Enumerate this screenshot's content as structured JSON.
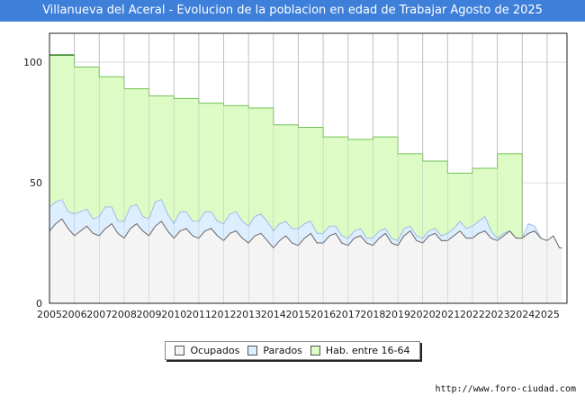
{
  "title": "Villanueva del Aceral - Evolucion de la poblacion en edad de Trabajar Agosto de 2025",
  "source": "http://www.foro-ciudad.com",
  "colors": {
    "hab": "#ddfbc5",
    "hab_line": "#72c254",
    "parados": "#ddeeff",
    "parados_line": "#9bbfe6",
    "ocupados": "#f4f4f4",
    "ocupados_line": "#666666"
  },
  "chart_data": {
    "type": "area",
    "xlim": [
      2005,
      2025.8
    ],
    "ylim": [
      0,
      112
    ],
    "x_ticks": [
      "2005",
      "2006",
      "2007",
      "2008",
      "2009",
      "2010",
      "2011",
      "2012",
      "2013",
      "2014",
      "2015",
      "2016",
      "2017",
      "2018",
      "2019",
      "2020",
      "2021",
      "2022",
      "2023",
      "2024",
      "2025"
    ],
    "y_ticks": [
      "0",
      "50",
      "100"
    ],
    "legend": [
      "Ocupados",
      "Parados",
      "Hab. entre 16-64"
    ],
    "hab_steps": [
      {
        "from": 2005,
        "to": 2006,
        "value": 103
      },
      {
        "from": 2006,
        "to": 2007,
        "value": 98
      },
      {
        "from": 2007,
        "to": 2008,
        "value": 94
      },
      {
        "from": 2008,
        "to": 2009,
        "value": 89
      },
      {
        "from": 2009,
        "to": 2010,
        "value": 86
      },
      {
        "from": 2010,
        "to": 2011,
        "value": 85
      },
      {
        "from": 2011,
        "to": 2012,
        "value": 83
      },
      {
        "from": 2012,
        "to": 2013,
        "value": 82
      },
      {
        "from": 2013,
        "to": 2014,
        "value": 81
      },
      {
        "from": 2014,
        "to": 2015,
        "value": 74
      },
      {
        "from": 2015,
        "to": 2016,
        "value": 73
      },
      {
        "from": 2016,
        "to": 2017,
        "value": 69
      },
      {
        "from": 2017,
        "to": 2018,
        "value": 68
      },
      {
        "from": 2018,
        "to": 2019,
        "value": 69
      },
      {
        "from": 2019,
        "to": 2020,
        "value": 62
      },
      {
        "from": 2020,
        "to": 2021,
        "value": 59
      },
      {
        "from": 2021,
        "to": 2022,
        "value": 54
      },
      {
        "from": 2022,
        "to": 2023,
        "value": 56
      },
      {
        "from": 2023,
        "to": 2024,
        "value": 62
      }
    ],
    "ocupados": {
      "x": [
        2005,
        2005.25,
        2005.5,
        2005.75,
        2006,
        2006.25,
        2006.5,
        2006.75,
        2007,
        2007.25,
        2007.5,
        2007.75,
        2008,
        2008.25,
        2008.5,
        2008.75,
        2009,
        2009.25,
        2009.5,
        2009.75,
        2010,
        2010.25,
        2010.5,
        2010.75,
        2011,
        2011.25,
        2011.5,
        2011.75,
        2012,
        2012.25,
        2012.5,
        2012.75,
        2013,
        2013.25,
        2013.5,
        2013.75,
        2014,
        2014.25,
        2014.5,
        2014.75,
        2015,
        2015.25,
        2015.5,
        2015.75,
        2016,
        2016.25,
        2016.5,
        2016.75,
        2017,
        2017.25,
        2017.5,
        2017.75,
        2018,
        2018.25,
        2018.5,
        2018.75,
        2019,
        2019.25,
        2019.5,
        2019.75,
        2020,
        2020.25,
        2020.5,
        2020.75,
        2021,
        2021.25,
        2021.5,
        2021.75,
        2022,
        2022.25,
        2022.5,
        2022.75,
        2023,
        2023.25,
        2023.5,
        2023.75,
        2024,
        2024.25,
        2024.5,
        2024.75,
        2025,
        2025.25,
        2025.5,
        2025.6
      ],
      "values": [
        30,
        33,
        35,
        31,
        28,
        30,
        32,
        29,
        28,
        31,
        33,
        29,
        27,
        31,
        33,
        30,
        28,
        32,
        34,
        30,
        27,
        30,
        31,
        28,
        27,
        30,
        31,
        28,
        26,
        29,
        30,
        27,
        25,
        28,
        29,
        26,
        23,
        26,
        28,
        25,
        24,
        27,
        29,
        25,
        25,
        28,
        29,
        25,
        24,
        27,
        28,
        25,
        24,
        27,
        29,
        25,
        24,
        28,
        30,
        26,
        25,
        28,
        29,
        26,
        26,
        28,
        30,
        27,
        27,
        29,
        30,
        27,
        26,
        28,
        30,
        27,
        27,
        29,
        30,
        27,
        26,
        28,
        23,
        23
      ]
    },
    "parados": {
      "x": [
        2005,
        2005.25,
        2005.5,
        2005.75,
        2006,
        2006.25,
        2006.5,
        2006.75,
        2007,
        2007.25,
        2007.5,
        2007.75,
        2008,
        2008.25,
        2008.5,
        2008.75,
        2009,
        2009.25,
        2009.5,
        2009.75,
        2010,
        2010.25,
        2010.5,
        2010.75,
        2011,
        2011.25,
        2011.5,
        2011.75,
        2012,
        2012.25,
        2012.5,
        2012.75,
        2013,
        2013.25,
        2013.5,
        2013.75,
        2014,
        2014.25,
        2014.5,
        2014.75,
        2015,
        2015.25,
        2015.5,
        2015.75,
        2016,
        2016.25,
        2016.5,
        2016.75,
        2017,
        2017.25,
        2017.5,
        2017.75,
        2018,
        2018.25,
        2018.5,
        2018.75,
        2019,
        2019.25,
        2019.5,
        2019.75,
        2020,
        2020.25,
        2020.5,
        2020.75,
        2021,
        2021.25,
        2021.5,
        2021.75,
        2022,
        2022.25,
        2022.5,
        2022.75,
        2023,
        2023.25,
        2023.5,
        2023.75,
        2024,
        2024.25,
        2024.5,
        2024.75
      ],
      "values": [
        10,
        9,
        8,
        7,
        9,
        8,
        7,
        6,
        8,
        9,
        7,
        5,
        7,
        9,
        8,
        6,
        7,
        10,
        9,
        7,
        6,
        8,
        7,
        6,
        7,
        8,
        7,
        6,
        7,
        8,
        8,
        7,
        7,
        8,
        8,
        8,
        7,
        7,
        6,
        6,
        7,
        6,
        5,
        4,
        4,
        4,
        3,
        3,
        3,
        3,
        3,
        2,
        3,
        3,
        2,
        2,
        2,
        3,
        2,
        2,
        2,
        2,
        2,
        2,
        3,
        3,
        4,
        4,
        5,
        5,
        6,
        3,
        1,
        1,
        0,
        0,
        0,
        4,
        2,
        0
      ]
    }
  }
}
